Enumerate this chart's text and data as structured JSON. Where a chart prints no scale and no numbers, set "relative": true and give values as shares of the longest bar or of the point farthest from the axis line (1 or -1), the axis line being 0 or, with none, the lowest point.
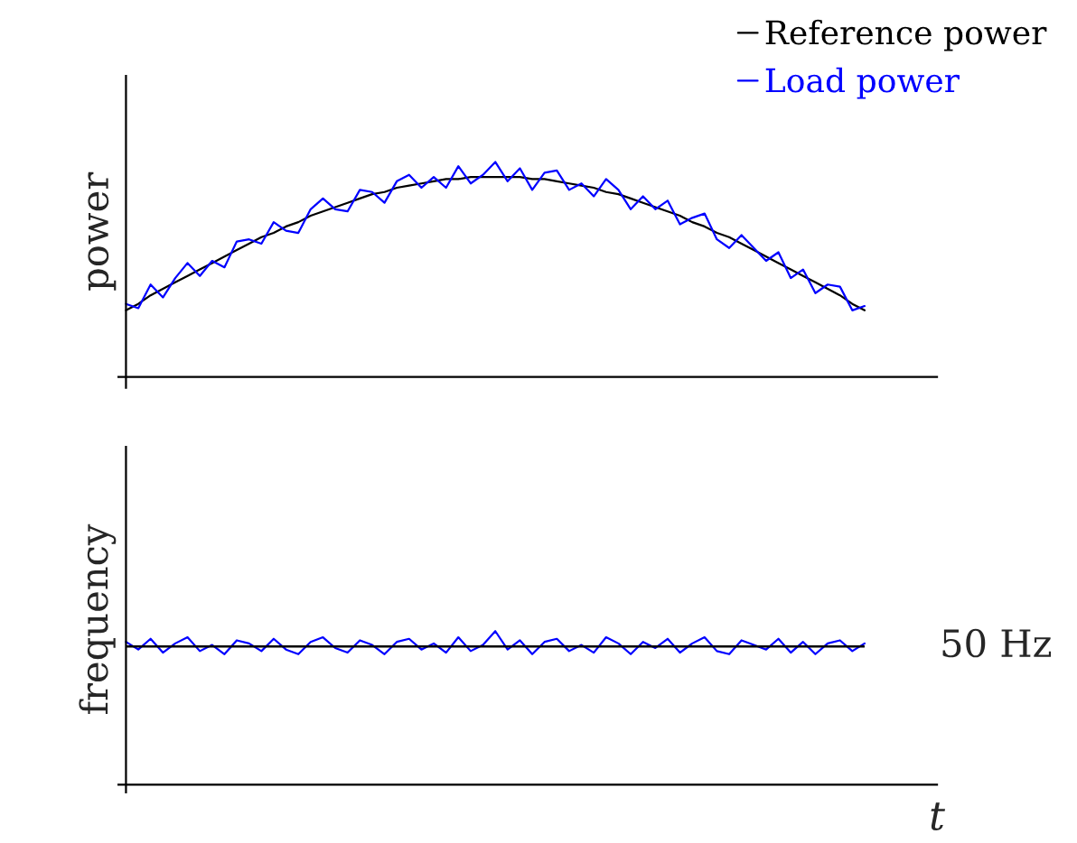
{
  "chart_data": [
    {
      "type": "line",
      "relative": true,
      "ylabel": "power",
      "legend": "top right",
      "categories": [
        null,
        null,
        null,
        null,
        null,
        null,
        null,
        null,
        null,
        null,
        null,
        null,
        null,
        null,
        null,
        null,
        null,
        null,
        null,
        null,
        null,
        null,
        null,
        null,
        null,
        null,
        null,
        null,
        null,
        null,
        null,
        null,
        null,
        null,
        null,
        null,
        null,
        null,
        null,
        null,
        null,
        null,
        null,
        null,
        null,
        null,
        null,
        null,
        null,
        null,
        null,
        null,
        null,
        null,
        null,
        null,
        null,
        null,
        null,
        null,
        null
      ],
      "series": [
        {
          "name": "Reference power",
          "color": "#000000",
          "values": [
            0.31,
            0.34,
            0.38,
            0.41,
            0.44,
            0.47,
            0.5,
            0.53,
            0.56,
            0.59,
            0.62,
            0.65,
            0.67,
            0.7,
            0.72,
            0.75,
            0.77,
            0.79,
            0.81,
            0.83,
            0.85,
            0.86,
            0.88,
            0.89,
            0.9,
            0.91,
            0.92,
            0.92,
            0.93,
            0.93,
            0.93,
            0.93,
            0.93,
            0.92,
            0.92,
            0.91,
            0.9,
            0.89,
            0.88,
            0.86,
            0.85,
            0.83,
            0.81,
            0.79,
            0.77,
            0.75,
            0.72,
            0.7,
            0.67,
            0.65,
            0.62,
            0.59,
            0.56,
            0.53,
            0.5,
            0.47,
            0.44,
            0.41,
            0.38,
            0.34,
            0.31
          ]
        },
        {
          "name": "Load power",
          "color": "#0000ff",
          "values": [
            0.34,
            0.32,
            0.43,
            0.37,
            0.46,
            0.53,
            0.47,
            0.54,
            0.51,
            0.63,
            0.64,
            0.62,
            0.72,
            0.68,
            0.67,
            0.78,
            0.83,
            0.78,
            0.77,
            0.87,
            0.86,
            0.81,
            0.91,
            0.94,
            0.88,
            0.93,
            0.88,
            0.98,
            0.9,
            0.94,
            1.0,
            0.91,
            0.97,
            0.87,
            0.95,
            0.96,
            0.87,
            0.9,
            0.84,
            0.92,
            0.87,
            0.78,
            0.84,
            0.78,
            0.82,
            0.71,
            0.74,
            0.76,
            0.64,
            0.6,
            0.66,
            0.6,
            0.54,
            0.58,
            0.46,
            0.5,
            0.39,
            0.43,
            0.42,
            0.31,
            0.33
          ]
        }
      ]
    },
    {
      "type": "line",
      "relative": true,
      "ylabel": "frequency",
      "xlabel": "t",
      "legend": false,
      "categories": [
        null,
        null,
        null,
        null,
        null,
        null,
        null,
        null,
        null,
        null,
        null,
        null,
        null,
        null,
        null,
        null,
        null,
        null,
        null,
        null,
        null,
        null,
        null,
        null,
        null,
        null,
        null,
        null,
        null,
        null,
        null,
        null,
        null,
        null,
        null,
        null,
        null,
        null,
        null,
        null,
        null,
        null,
        null,
        null,
        null,
        null,
        null,
        null,
        null,
        null,
        null,
        null,
        null,
        null,
        null,
        null,
        null,
        null,
        null,
        null,
        null
      ],
      "ref_lines": [
        {
          "axis": "y",
          "value": 0.9,
          "label": "50 Hz",
          "color": "#000000"
        }
      ],
      "series": [
        {
          "color": "#0000ff",
          "values": [
            0.93,
            0.88,
            0.95,
            0.86,
            0.92,
            0.96,
            0.87,
            0.91,
            0.85,
            0.94,
            0.92,
            0.87,
            0.95,
            0.88,
            0.85,
            0.93,
            0.96,
            0.89,
            0.86,
            0.94,
            0.91,
            0.85,
            0.93,
            0.95,
            0.88,
            0.92,
            0.86,
            0.96,
            0.87,
            0.91,
            1.0,
            0.88,
            0.94,
            0.85,
            0.93,
            0.95,
            0.87,
            0.91,
            0.86,
            0.96,
            0.92,
            0.85,
            0.93,
            0.89,
            0.95,
            0.86,
            0.92,
            0.96,
            0.87,
            0.85,
            0.94,
            0.91,
            0.88,
            0.95,
            0.86,
            0.93,
            0.85,
            0.92,
            0.94,
            0.87,
            0.92
          ]
        }
      ]
    }
  ]
}
